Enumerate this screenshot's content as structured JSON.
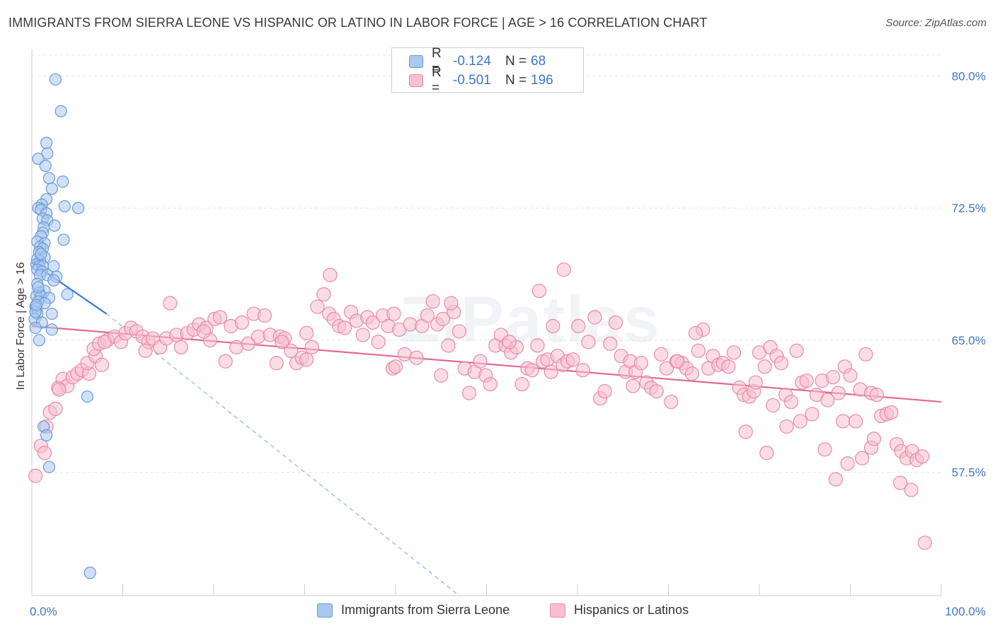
{
  "title": "IMMIGRANTS FROM SIERRA LEONE VS HISPANIC OR LATINO IN LABOR FORCE | AGE > 16 CORRELATION CHART",
  "source": "Source: ZipAtlas.com",
  "watermark": "ZIPatlas",
  "legend": {
    "r_label": "R =",
    "n_label": "N =",
    "rows": [
      {
        "r": "-0.124",
        "n": "68",
        "color": "#a9c8f0",
        "border": "#6a9ad8"
      },
      {
        "r": "-0.501",
        "n": "196",
        "color": "#f8bfd0",
        "border": "#e88aa8"
      }
    ]
  },
  "bottom_legend": [
    {
      "label": "Immigrants from Sierra Leone",
      "color": "#a9c8f0",
      "border": "#6a9ad8"
    },
    {
      "label": "Hispanics or Latinos",
      "color": "#f8bfd0",
      "border": "#e88aa8"
    }
  ],
  "chart_data": {
    "type": "scatter",
    "title": "IMMIGRANTS FROM SIERRA LEONE VS HISPANIC OR LATINO IN LABOR FORCE | AGE > 16 CORRELATION CHART",
    "xlabel": "",
    "ylabel": "In Labor Force | Age > 16",
    "xlim": [
      0,
      100
    ],
    "ylim": [
      50.5,
      81.5
    ],
    "x_tick_labels": [
      "0.0%",
      "100.0%"
    ],
    "y_ticks": [
      57.5,
      65.0,
      72.5,
      80.0
    ],
    "y_tick_labels": [
      "57.5%",
      "65.0%",
      "72.5%",
      "80.0%"
    ],
    "grid": true,
    "series": [
      {
        "name": "Immigrants from Sierra Leone",
        "color": "#a9c8f0",
        "stroke": "#6a9ad8",
        "trend": {
          "x0": 0,
          "y0": 69.4,
          "x1": 8.2,
          "y1": 66.5,
          "color": "#3a78d0",
          "dashed_to_x": 47,
          "dashed_to_y": 50.5
        },
        "points": [
          [
            2.6,
            79.8
          ],
          [
            3.2,
            78.0
          ],
          [
            1.6,
            76.2
          ],
          [
            1.7,
            75.6
          ],
          [
            0.7,
            75.3
          ],
          [
            1.5,
            74.9
          ],
          [
            1.9,
            74.2
          ],
          [
            3.4,
            74.0
          ],
          [
            2.2,
            73.6
          ],
          [
            1.6,
            73.0
          ],
          [
            1.1,
            72.7
          ],
          [
            3.6,
            72.6
          ],
          [
            5.1,
            72.5
          ],
          [
            0.7,
            72.5
          ],
          [
            1.0,
            72.4
          ],
          [
            1.6,
            72.2
          ],
          [
            1.2,
            71.9
          ],
          [
            1.7,
            71.8
          ],
          [
            2.5,
            71.5
          ],
          [
            1.3,
            71.4
          ],
          [
            1.2,
            71.1
          ],
          [
            1.0,
            70.9
          ],
          [
            3.5,
            70.7
          ],
          [
            0.6,
            70.6
          ],
          [
            1.4,
            70.5
          ],
          [
            0.9,
            70.3
          ],
          [
            1.2,
            70.2
          ],
          [
            0.8,
            70.0
          ],
          [
            1.4,
            69.7
          ],
          [
            0.6,
            69.6
          ],
          [
            0.9,
            69.5
          ],
          [
            0.5,
            69.3
          ],
          [
            0.8,
            69.2
          ],
          [
            1.2,
            69.2
          ],
          [
            2.4,
            69.2
          ],
          [
            0.6,
            69.0
          ],
          [
            1.1,
            68.9
          ],
          [
            0.9,
            68.7
          ],
          [
            1.7,
            68.7
          ],
          [
            2.7,
            68.6
          ],
          [
            2.4,
            68.4
          ],
          [
            0.6,
            68.2
          ],
          [
            1.4,
            67.8
          ],
          [
            0.8,
            67.7
          ],
          [
            3.9,
            67.6
          ],
          [
            0.5,
            67.5
          ],
          [
            1.0,
            67.5
          ],
          [
            1.9,
            67.4
          ],
          [
            0.7,
            67.2
          ],
          [
            1.4,
            67.1
          ],
          [
            0.4,
            66.9
          ],
          [
            0.5,
            66.8
          ],
          [
            0.6,
            66.5
          ],
          [
            2.2,
            66.5
          ],
          [
            0.3,
            66.2
          ],
          [
            1.1,
            66.0
          ],
          [
            0.4,
            65.7
          ],
          [
            2.2,
            65.6
          ],
          [
            0.8,
            65.0
          ],
          [
            6.1,
            61.8
          ],
          [
            1.3,
            60.1
          ],
          [
            1.6,
            59.6
          ],
          [
            1.9,
            57.8
          ],
          [
            6.4,
            51.8
          ],
          [
            0.4,
            66.6
          ],
          [
            0.5,
            67.0
          ],
          [
            0.7,
            68.0
          ],
          [
            1.0,
            69.9
          ]
        ]
      },
      {
        "name": "Hispanics or Latinos",
        "color": "#f8bfd0",
        "stroke": "#e88aa8",
        "trend": {
          "x0": 0,
          "y0": 65.8,
          "x1": 100,
          "y1": 61.5,
          "color": "#e06a94"
        },
        "points": [
          [
            0.4,
            57.3
          ],
          [
            1.0,
            59.0
          ],
          [
            1.4,
            58.6
          ],
          [
            2.0,
            60.9
          ],
          [
            2.6,
            61.1
          ],
          [
            2.9,
            62.3
          ],
          [
            3.4,
            62.8
          ],
          [
            3.9,
            62.4
          ],
          [
            4.5,
            62.9
          ],
          [
            5.0,
            63.1
          ],
          [
            5.5,
            63.3
          ],
          [
            6.3,
            63.1
          ],
          [
            6.1,
            63.7
          ],
          [
            7.0,
            64.1
          ],
          [
            7.7,
            63.6
          ],
          [
            6.8,
            64.5
          ],
          [
            7.4,
            64.8
          ],
          [
            8.3,
            65.0
          ],
          [
            9.1,
            65.2
          ],
          [
            9.8,
            64.9
          ],
          [
            10.3,
            65.4
          ],
          [
            10.9,
            65.7
          ],
          [
            11.5,
            65.5
          ],
          [
            12.2,
            65.2
          ],
          [
            12.8,
            64.9
          ],
          [
            13.3,
            65.1
          ],
          [
            14.1,
            64.6
          ],
          [
            14.8,
            65.1
          ],
          [
            15.2,
            67.1
          ],
          [
            15.9,
            65.3
          ],
          [
            16.4,
            64.6
          ],
          [
            17.1,
            65.4
          ],
          [
            17.8,
            65.6
          ],
          [
            18.4,
            65.9
          ],
          [
            19.2,
            65.7
          ],
          [
            19.6,
            65.0
          ],
          [
            20.1,
            66.2
          ],
          [
            20.7,
            66.3
          ],
          [
            21.3,
            63.8
          ],
          [
            21.9,
            65.8
          ],
          [
            22.5,
            64.6
          ],
          [
            23.1,
            66.0
          ],
          [
            23.8,
            64.8
          ],
          [
            24.4,
            66.5
          ],
          [
            24.9,
            65.2
          ],
          [
            25.6,
            66.4
          ],
          [
            26.2,
            65.3
          ],
          [
            26.9,
            63.7
          ],
          [
            27.3,
            65.2
          ],
          [
            27.8,
            65.1
          ],
          [
            28.5,
            64.4
          ],
          [
            29.1,
            63.7
          ],
          [
            29.7,
            64.0
          ],
          [
            30.2,
            63.9
          ],
          [
            30.8,
            64.6
          ],
          [
            31.4,
            66.9
          ],
          [
            32.1,
            67.6
          ],
          [
            32.7,
            66.5
          ],
          [
            33.2,
            66.2
          ],
          [
            33.8,
            65.8
          ],
          [
            34.4,
            65.7
          ],
          [
            32.8,
            68.7
          ],
          [
            35.1,
            66.6
          ],
          [
            35.7,
            66.1
          ],
          [
            36.4,
            65.3
          ],
          [
            36.9,
            66.3
          ],
          [
            37.5,
            66.0
          ],
          [
            38.1,
            64.9
          ],
          [
            38.6,
            66.4
          ],
          [
            39.2,
            65.8
          ],
          [
            39.8,
            66.5
          ],
          [
            40.4,
            65.6
          ],
          [
            41.0,
            64.2
          ],
          [
            41.6,
            65.9
          ],
          [
            42.3,
            64.0
          ],
          [
            42.9,
            65.8
          ],
          [
            43.5,
            66.4
          ],
          [
            44.1,
            67.2
          ],
          [
            44.6,
            65.9
          ],
          [
            45.2,
            66.2
          ],
          [
            45.8,
            64.7
          ],
          [
            46.4,
            66.6
          ],
          [
            47.0,
            65.5
          ],
          [
            47.6,
            63.4
          ],
          [
            48.1,
            62.0
          ],
          [
            48.7,
            63.2
          ],
          [
            49.3,
            63.8
          ],
          [
            49.9,
            63.0
          ],
          [
            50.4,
            62.5
          ],
          [
            51.0,
            64.7
          ],
          [
            51.6,
            65.3
          ],
          [
            52.1,
            64.7
          ],
          [
            52.7,
            64.3
          ],
          [
            53.3,
            64.6
          ],
          [
            53.9,
            62.5
          ],
          [
            54.5,
            63.4
          ],
          [
            55.0,
            63.3
          ],
          [
            55.6,
            64.7
          ],
          [
            56.2,
            63.8
          ],
          [
            56.7,
            63.9
          ],
          [
            57.3,
            65.8
          ],
          [
            57.8,
            64.1
          ],
          [
            58.4,
            63.6
          ],
          [
            58.9,
            63.8
          ],
          [
            59.5,
            63.9
          ],
          [
            60.1,
            65.8
          ],
          [
            60.6,
            63.3
          ],
          [
            61.2,
            64.9
          ],
          [
            61.9,
            66.3
          ],
          [
            62.5,
            61.7
          ],
          [
            63.0,
            62.1
          ],
          [
            63.6,
            64.8
          ],
          [
            64.2,
            66.0
          ],
          [
            64.8,
            64.1
          ],
          [
            65.3,
            63.2
          ],
          [
            65.8,
            63.8
          ],
          [
            66.4,
            63.2
          ],
          [
            67.0,
            63.7
          ],
          [
            67.6,
            62.6
          ],
          [
            68.1,
            62.3
          ],
          [
            68.7,
            62.1
          ],
          [
            69.2,
            64.2
          ],
          [
            69.8,
            63.4
          ],
          [
            70.3,
            61.5
          ],
          [
            70.9,
            63.8
          ],
          [
            71.5,
            63.7
          ],
          [
            72.0,
            63.4
          ],
          [
            72.6,
            63.1
          ],
          [
            73.3,
            64.4
          ],
          [
            73.8,
            65.6
          ],
          [
            74.4,
            63.4
          ],
          [
            74.9,
            64.1
          ],
          [
            75.5,
            63.6
          ],
          [
            76.0,
            63.7
          ],
          [
            76.6,
            63.5
          ],
          [
            77.2,
            64.3
          ],
          [
            77.8,
            62.3
          ],
          [
            78.3,
            61.9
          ],
          [
            78.9,
            61.8
          ],
          [
            79.4,
            62.1
          ],
          [
            80.0,
            64.3
          ],
          [
            80.6,
            63.5
          ],
          [
            81.2,
            64.6
          ],
          [
            81.9,
            64.1
          ],
          [
            82.4,
            63.7
          ],
          [
            82.9,
            61.9
          ],
          [
            83.5,
            61.5
          ],
          [
            84.1,
            64.4
          ],
          [
            84.7,
            62.6
          ],
          [
            85.2,
            62.7
          ],
          [
            85.8,
            60.8
          ],
          [
            86.3,
            61.9
          ],
          [
            86.9,
            62.7
          ],
          [
            87.5,
            61.6
          ],
          [
            88.1,
            62.9
          ],
          [
            88.7,
            62.0
          ],
          [
            89.4,
            63.5
          ],
          [
            90.0,
            63.0
          ],
          [
            89.2,
            60.4
          ],
          [
            90.6,
            60.4
          ],
          [
            91.1,
            62.2
          ],
          [
            91.7,
            64.2
          ],
          [
            92.3,
            62.0
          ],
          [
            92.9,
            61.9
          ],
          [
            93.4,
            60.7
          ],
          [
            94.0,
            60.8
          ],
          [
            94.5,
            60.9
          ],
          [
            95.1,
            59.1
          ],
          [
            95.6,
            58.7
          ],
          [
            96.2,
            58.3
          ],
          [
            96.8,
            58.7
          ],
          [
            97.3,
            58.2
          ],
          [
            97.9,
            58.4
          ],
          [
            98.2,
            53.5
          ],
          [
            92.3,
            58.9
          ],
          [
            92.6,
            59.4
          ],
          [
            91.3,
            58.3
          ],
          [
            89.7,
            58.0
          ],
          [
            88.4,
            57.1
          ],
          [
            87.2,
            58.8
          ],
          [
            84.5,
            60.4
          ],
          [
            83.0,
            60.1
          ],
          [
            81.5,
            61.3
          ],
          [
            80.8,
            58.6
          ],
          [
            79.6,
            62.6
          ],
          [
            78.5,
            59.8
          ],
          [
            95.5,
            56.9
          ],
          [
            96.7,
            56.5
          ],
          [
            66.1,
            62.4
          ],
          [
            71.0,
            63.8
          ],
          [
            57.1,
            63.2
          ],
          [
            52.5,
            64.9
          ],
          [
            45.0,
            63.0
          ],
          [
            39.7,
            63.4
          ],
          [
            30.2,
            65.4
          ],
          [
            18.9,
            65.5
          ],
          [
            73.0,
            65.4
          ],
          [
            58.5,
            69.0
          ],
          [
            55.8,
            67.8
          ],
          [
            40.0,
            63.5
          ],
          [
            46.1,
            67.1
          ],
          [
            27.5,
            64.9
          ],
          [
            12.5,
            64.4
          ],
          [
            8.0,
            64.9
          ],
          [
            3.0,
            62.2
          ],
          [
            1.6,
            60.1
          ]
        ]
      }
    ]
  }
}
